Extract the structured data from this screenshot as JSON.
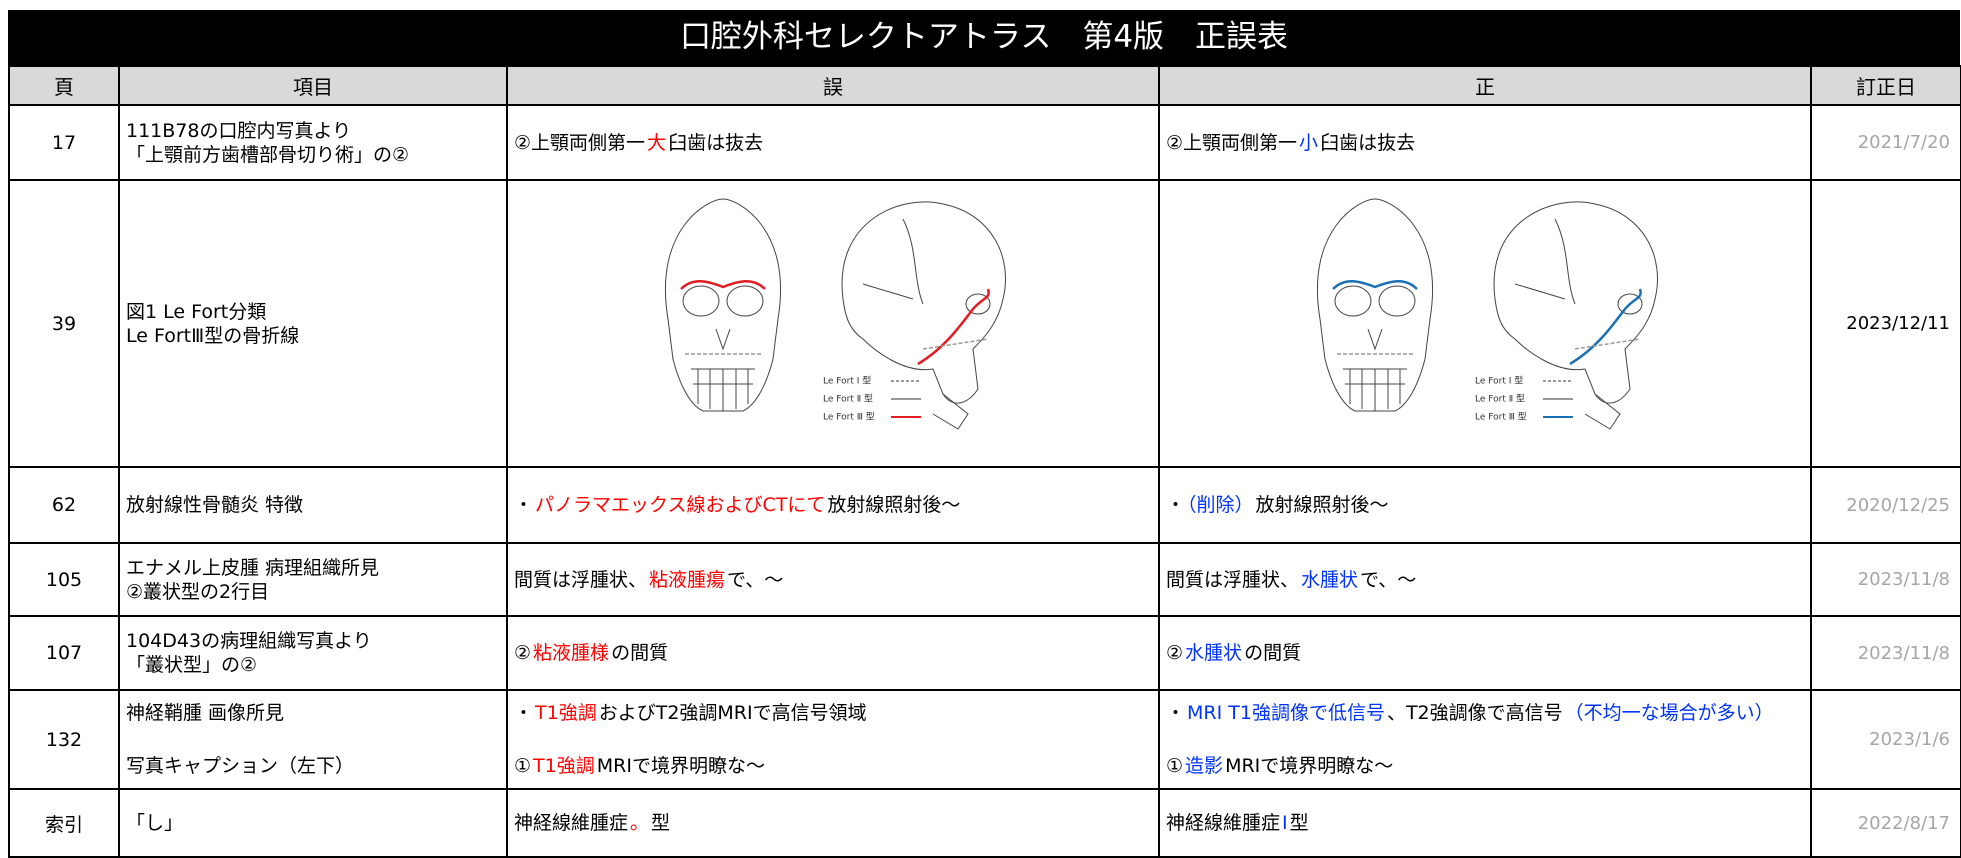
{
  "title": "口腔外科セレクトアトラス　第4版　正誤表",
  "table": {
    "headers": [
      "頁",
      "項目",
      "誤",
      "正",
      "訂正日"
    ],
    "rows": [
      {
        "page": "17",
        "item": [
          "111B78の口腔内写真より",
          "「上顎前方歯槽部骨切り術」の②"
        ],
        "wrong": [
          [
            "②上顎両側第一",
            {
              "text": "大",
              "color": "#ff0000"
            },
            "臼歯は抜去"
          ]
        ],
        "right": [
          [
            "②上顎両側第一",
            {
              "text": "小",
              "color": "#0033ff"
            },
            "臼歯は抜去"
          ]
        ],
        "date": "2021/7/20",
        "date_color": "#a6a6a6"
      },
      {
        "page": "39",
        "item": [
          "図1  Le Fort分類",
          "Le FortⅢ型の骨折線"
        ],
        "wrong": {
          "line_color": "#e31b23"
        },
        "right": {
          "line_color": "#1a6fb5"
        },
        "date": "2023/12/11",
        "date_color": "#000000"
      },
      {
        "page": "62",
        "item": [
          "放射線性骨髄炎  特徴"
        ],
        "wrong": [
          [
            "・",
            {
              "text": "パノラマエックス線およびCTにて",
              "color": "#ff0000"
            },
            "放射線照射後～"
          ]
        ],
        "right": [
          [
            "・",
            {
              "text": "（削除）",
              "color": "#0033ff"
            },
            "放射線照射後～"
          ]
        ],
        "date": "2020/12/25",
        "date_color": "#a6a6a6"
      },
      {
        "page": "105",
        "item": [
          "エナメル上皮腫  病理組織所見",
          "②叢状型の2行目"
        ],
        "wrong": [
          [
            "間質は浮腫状、",
            {
              "text": "粘液腫瘍",
              "color": "#ff0000"
            },
            "で、～"
          ]
        ],
        "right": [
          [
            "間質は浮腫状、",
            {
              "text": "水腫状",
              "color": "#0033ff"
            },
            "で、～"
          ]
        ],
        "date": "2023/11/8",
        "date_color": "#a6a6a6"
      },
      {
        "page": "107",
        "item": [
          "104D43の病理組織写真より",
          "「叢状型」の②"
        ],
        "wrong": [
          [
            "②",
            {
              "text": "粘液腫様",
              "color": "#ff0000"
            },
            "の間質"
          ]
        ],
        "right": [
          [
            "②",
            {
              "text": "水腫状",
              "color": "#0033ff"
            },
            "の間質"
          ]
        ],
        "date": "2023/11/8",
        "date_color": "#a6a6a6"
      },
      {
        "page": "132",
        "item": [
          "神経鞘腫  画像所見",
          "写真キャプション（左下）"
        ],
        "wrong": [
          [
            "・",
            {
              "text": "T1強調",
              "color": "#ff0000"
            },
            "およびT2強調MRIで高信号領域"
          ],
          [
            "①",
            {
              "text": "T1強調",
              "color": "#ff0000"
            },
            "MRIで境界明瞭な～"
          ]
        ],
        "right": [
          [
            "・",
            {
              "text": "MRI T1強調像で低信号",
              "color": "#0033ff"
            },
            "、T2強調像で高信号",
            {
              "text": "（不均一な場合が多い）",
              "color": "#0033ff"
            }
          ],
          [
            "①",
            {
              "text": "造影",
              "color": "#0033ff"
            },
            "MRIで境界明瞭な～"
          ]
        ],
        "date": "2023/1/6",
        "date_color": "#a6a6a6"
      },
      {
        "page": "索引",
        "item": [
          "「し」"
        ],
        "wrong": [
          [
            "神経線維腫症",
            {
              "text": "。",
              "color": "#ff0000"
            },
            "型"
          ]
        ],
        "right": [
          [
            "神経線維腫症",
            {
              "text": "Ⅰ",
              "color": "#0033ff"
            },
            "型"
          ]
        ],
        "date": "2022/8/17",
        "date_color": "#a6a6a6"
      }
    ]
  },
  "figures": {
    "legend": [
      "Le Fort Ⅰ 型",
      "Le Fort Ⅱ 型",
      "Le Fort Ⅲ 型"
    ]
  }
}
